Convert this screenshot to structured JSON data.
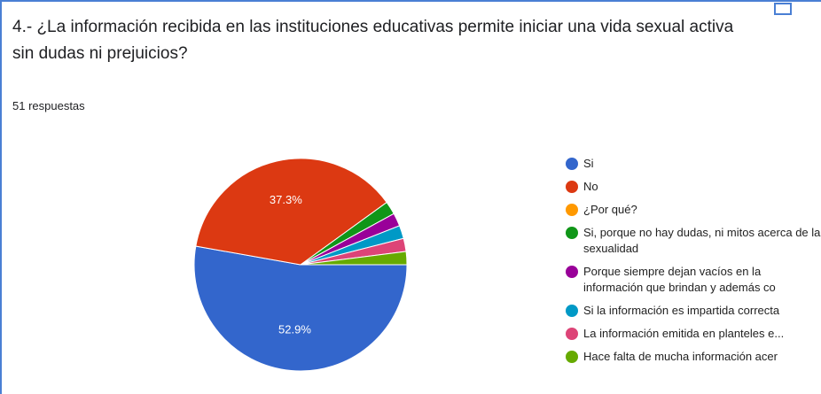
{
  "chart_data": {
    "type": "pie",
    "title": "4.- ¿La información recibida en las instituciones educativas permite iniciar una vida sexual activa sin dudas ni prejuicios?",
    "subtitle": "51 respuestas",
    "categories": [
      "Si",
      "No",
      "¿Por qué?",
      "Si, porque no hay dudas, ni mitos acerca de la sexualidad",
      "Porque siempre dejan vacíos en la información que brindan y además co",
      "Si la información es impartida correcta",
      "La información emitida en planteles e...",
      "Hace falta de mucha información acer"
    ],
    "values": [
      52.9,
      37.3,
      0,
      2.0,
      2.0,
      2.0,
      2.0,
      2.0
    ],
    "value_labels": [
      "52.9%",
      "37.3%",
      null,
      null,
      null,
      null,
      null,
      null
    ],
    "colors": [
      "#3366cc",
      "#dc3912",
      "#ff9900",
      "#109618",
      "#990099",
      "#0099c6",
      "#dd4477",
      "#66aa00"
    ]
  }
}
